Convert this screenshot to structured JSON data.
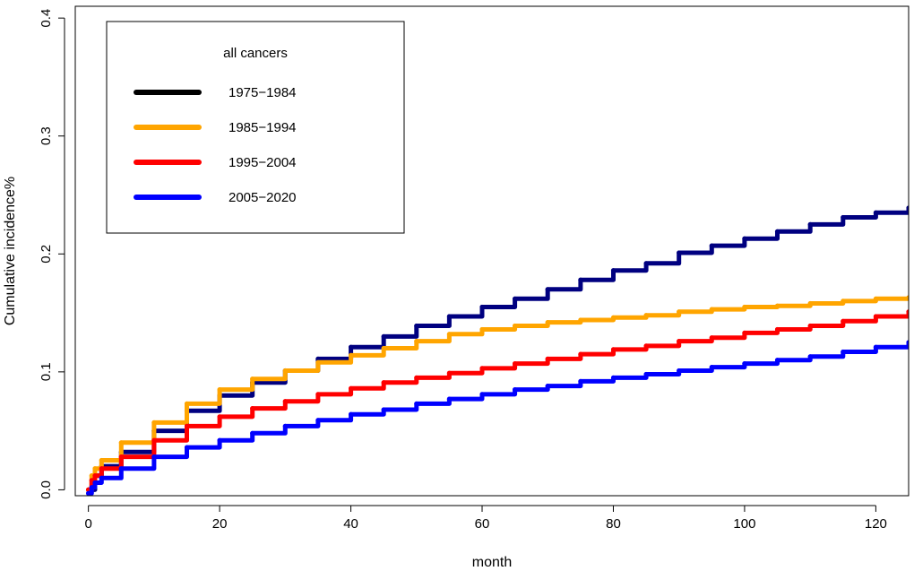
{
  "chart_data": {
    "type": "line",
    "title": "",
    "xlabel": "month",
    "ylabel": "Cumulative incidence%",
    "xlim": [
      -2,
      125
    ],
    "ylim": [
      -0.005,
      0.41
    ],
    "x_ticks": [
      0,
      20,
      40,
      60,
      80,
      100,
      120
    ],
    "y_ticks": [
      0.0,
      0.1,
      0.2,
      0.3,
      0.4
    ],
    "x_tick_labels": [
      "0",
      "20",
      "40",
      "60",
      "80",
      "100",
      "120"
    ],
    "y_tick_labels": [
      "0.0",
      "0.1",
      "0.2",
      "0.3",
      "0.4"
    ],
    "grid": false,
    "legend_position": "top-left",
    "legend_title": "all cancers",
    "series": [
      {
        "name": "1975−1984",
        "legend_color": "#000000",
        "color": "#000080",
        "x": [
          0,
          1,
          2,
          5,
          10,
          15,
          20,
          25,
          30,
          35,
          40,
          45,
          50,
          55,
          60,
          65,
          70,
          75,
          80,
          85,
          90,
          95,
          100,
          105,
          110,
          115,
          120,
          125
        ],
        "y": [
          0.0,
          0.012,
          0.02,
          0.032,
          0.05,
          0.067,
          0.08,
          0.091,
          0.101,
          0.111,
          0.121,
          0.13,
          0.139,
          0.147,
          0.155,
          0.162,
          0.17,
          0.178,
          0.186,
          0.192,
          0.201,
          0.207,
          0.213,
          0.219,
          0.225,
          0.231,
          0.235,
          0.239
        ]
      },
      {
        "name": "1985−1994",
        "legend_color": "#FFA500",
        "color": "#FFA500",
        "x": [
          0,
          0.5,
          1,
          2,
          5,
          10,
          15,
          20,
          25,
          30,
          35,
          40,
          45,
          50,
          55,
          60,
          65,
          70,
          75,
          80,
          85,
          90,
          95,
          100,
          105,
          110,
          115,
          120,
          125
        ],
        "y": [
          0.0,
          0.012,
          0.018,
          0.025,
          0.04,
          0.057,
          0.073,
          0.085,
          0.094,
          0.101,
          0.108,
          0.114,
          0.12,
          0.126,
          0.132,
          0.136,
          0.139,
          0.142,
          0.144,
          0.146,
          0.148,
          0.151,
          0.153,
          0.155,
          0.156,
          0.158,
          0.16,
          0.162,
          0.163
        ]
      },
      {
        "name": "1995−2004",
        "legend_color": "#FF0000",
        "color": "#FF0000",
        "x": [
          0,
          0.5,
          1,
          2,
          5,
          10,
          15,
          20,
          25,
          30,
          35,
          40,
          45,
          50,
          55,
          60,
          65,
          70,
          75,
          80,
          85,
          90,
          95,
          100,
          105,
          110,
          115,
          120,
          125
        ],
        "y": [
          0.0,
          0.008,
          0.012,
          0.018,
          0.028,
          0.042,
          0.054,
          0.062,
          0.069,
          0.075,
          0.081,
          0.086,
          0.091,
          0.095,
          0.099,
          0.103,
          0.107,
          0.111,
          0.115,
          0.119,
          0.122,
          0.126,
          0.129,
          0.133,
          0.136,
          0.139,
          0.143,
          0.147,
          0.151
        ]
      },
      {
        "name": "2005−2020",
        "legend_color": "#0000FF",
        "color": "#0000FF",
        "x": [
          0,
          0.5,
          1,
          2,
          5,
          10,
          15,
          20,
          25,
          30,
          35,
          40,
          45,
          50,
          55,
          60,
          65,
          70,
          75,
          80,
          85,
          90,
          95,
          100,
          105,
          110,
          115,
          120,
          125
        ],
        "y": [
          -0.003,
          0.002,
          0.006,
          0.01,
          0.018,
          0.028,
          0.036,
          0.042,
          0.048,
          0.054,
          0.059,
          0.064,
          0.068,
          0.073,
          0.077,
          0.081,
          0.085,
          0.088,
          0.092,
          0.095,
          0.098,
          0.101,
          0.104,
          0.107,
          0.11,
          0.113,
          0.117,
          0.121,
          0.125
        ]
      }
    ]
  }
}
